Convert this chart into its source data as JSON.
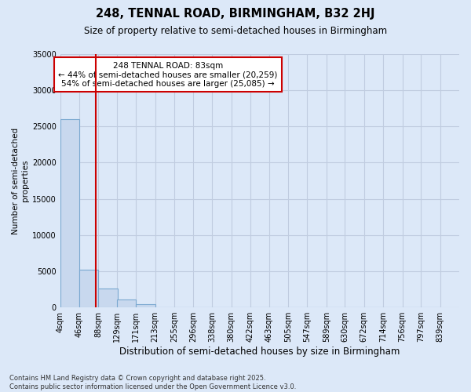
{
  "title": "248, TENNAL ROAD, BIRMINGHAM, B32 2HJ",
  "subtitle": "Size of property relative to semi-detached houses in Birmingham",
  "xlabel": "Distribution of semi-detached houses by size in Birmingham",
  "ylabel": "Number of semi-detached\nproperties",
  "footnote": "Contains HM Land Registry data © Crown copyright and database right 2025.\nContains public sector information licensed under the Open Government Licence v3.0.",
  "bar_color": "#c8d8ee",
  "bar_edge_color": "#7aa8d0",
  "grid_color": "#c0cce0",
  "background_color": "#dce8f8",
  "vline_color": "#cc0000",
  "vline_x": 83,
  "annotation_text": "248 TENNAL ROAD: 83sqm\n← 44% of semi-detached houses are smaller (20,259)\n54% of semi-detached houses are larger (25,085) →",
  "annotation_box_color": "white",
  "annotation_edge_color": "#cc0000",
  "categories": [
    "4sqm",
    "46sqm",
    "88sqm",
    "129sqm",
    "171sqm",
    "213sqm",
    "255sqm",
    "296sqm",
    "338sqm",
    "380sqm",
    "422sqm",
    "463sqm",
    "505sqm",
    "547sqm",
    "589sqm",
    "630sqm",
    "672sqm",
    "714sqm",
    "756sqm",
    "797sqm",
    "839sqm"
  ],
  "bin_edges": [
    4,
    46,
    88,
    129,
    171,
    213,
    255,
    296,
    338,
    380,
    422,
    463,
    505,
    547,
    589,
    630,
    672,
    714,
    756,
    797,
    839
  ],
  "values": [
    26000,
    5200,
    2650,
    1100,
    480,
    50,
    20,
    10,
    5,
    2,
    1,
    0,
    0,
    0,
    0,
    0,
    0,
    0,
    0,
    0
  ],
  "ylim": [
    0,
    35000
  ],
  "yticks": [
    0,
    5000,
    10000,
    15000,
    20000,
    25000,
    30000,
    35000
  ]
}
